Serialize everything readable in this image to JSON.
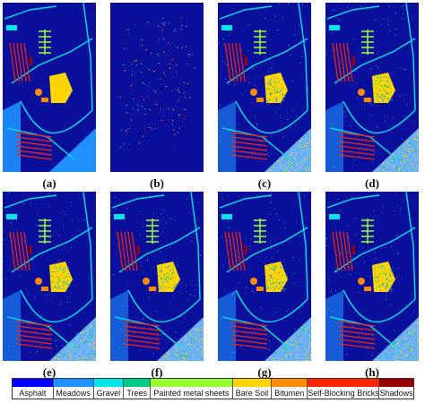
{
  "figure": {
    "panels": [
      {
        "label": "(a)",
        "style": "gt"
      },
      {
        "label": "(b)",
        "style": "sparse"
      },
      {
        "label": "(c)",
        "style": "noisy"
      },
      {
        "label": "(d)",
        "style": "noisy"
      },
      {
        "label": "(e)",
        "style": "noisy"
      },
      {
        "label": "(f)",
        "style": "noisy"
      },
      {
        "label": "(g)",
        "style": "noisy"
      },
      {
        "label": "(h)",
        "style": "noisy"
      }
    ],
    "background_color": "#0a0f9c",
    "legend": [
      {
        "label": "Asphalt",
        "color": "#0000ff"
      },
      {
        "label": "Meadows",
        "color": "#1e90ff"
      },
      {
        "label": "Gravel",
        "color": "#00e5e5"
      },
      {
        "label": "Trees",
        "color": "#00cc88"
      },
      {
        "label": "Painted metal sheets",
        "color": "#99ff33"
      },
      {
        "label": "Bare Soil",
        "color": "#ffd400"
      },
      {
        "label": "Bitumen",
        "color": "#ff8c00"
      },
      {
        "label": "Self-Blocking Bricks",
        "color": "#ff2200"
      },
      {
        "label": "Shadows",
        "color": "#990000"
      }
    ]
  }
}
